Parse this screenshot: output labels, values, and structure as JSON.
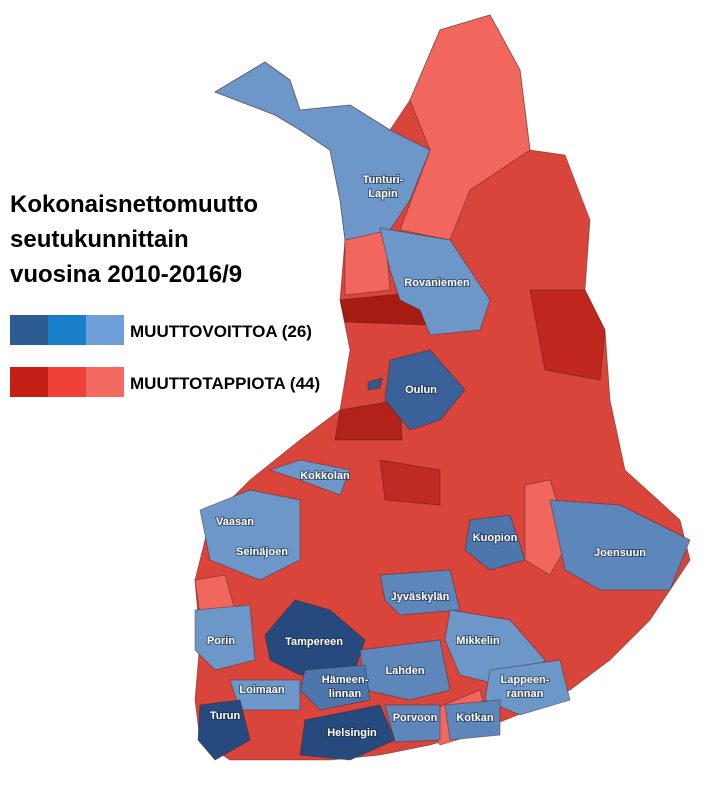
{
  "title": [
    "Kokonaisnettomuutto",
    "seutukunnittain",
    "vuosina 2010-2016/9"
  ],
  "legend": [
    {
      "label": "MUUTTOVOITTOA (26)",
      "colors": [
        "#2f5b93",
        "#1a7fc9",
        "#6f9fd8"
      ]
    },
    {
      "label": "MUUTTOTAPPIOTA (44)",
      "colors": [
        "#c41f16",
        "#f0403a",
        "#f46a62"
      ]
    }
  ],
  "regions": [
    [
      "Tunturi-",
      "Lapin"
    ],
    [
      "Rovaniemen"
    ],
    [
      "Oulun"
    ],
    [
      "Kokkolan"
    ],
    [
      "Vaasan"
    ],
    [
      "Seinäjoen"
    ],
    [
      "Kuopion"
    ],
    [
      "Joensuun"
    ],
    [
      "Jyväskylän"
    ],
    [
      "Porin"
    ],
    [
      "Tampereen"
    ],
    [
      "Mikkelin"
    ],
    [
      "Lahden"
    ],
    [
      "Loimaan"
    ],
    [
      "Hämeen-",
      "linnan"
    ],
    [
      "Lappeen-",
      "rannan"
    ],
    [
      "Turun"
    ],
    [
      "Helsingin"
    ],
    [
      "Porvoon"
    ],
    [
      "Kotkan"
    ]
  ]
}
